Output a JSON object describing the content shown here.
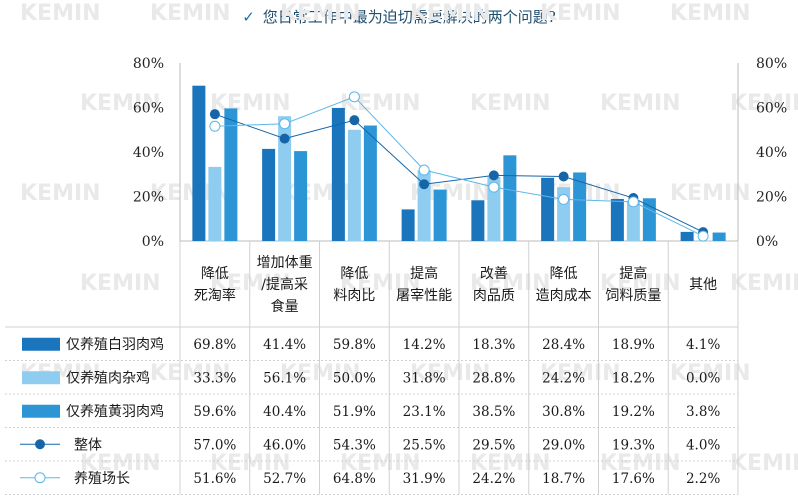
{
  "title": "您日常工作中最为迫切需要解决的两个问题?",
  "title_icon": "check-icon",
  "watermark": "KEMIN",
  "chart_data": {
    "type": "bar",
    "title": "您日常工作中最为迫切需要解决的两个问题?",
    "categories": [
      [
        "降低",
        "死淘率"
      ],
      [
        "增加体重",
        "/提高采",
        "食量"
      ],
      [
        "降低",
        "料肉比"
      ],
      [
        "提高",
        "屠宰性能"
      ],
      [
        "改善",
        "肉品质"
      ],
      [
        "降低",
        "造肉成本"
      ],
      [
        "提高",
        "饲料质量"
      ],
      [
        "其他"
      ]
    ],
    "ylim": [
      0,
      80
    ],
    "yticks": [
      "0%",
      "20%",
      "40%",
      "60%",
      "80%"
    ],
    "ytick_values": [
      0,
      20,
      40,
      60,
      80
    ],
    "series": [
      {
        "name": "仅养殖白羽肉鸡",
        "kind": "bar",
        "color": "#1a75bc",
        "values": [
          69.8,
          41.4,
          59.8,
          14.2,
          18.3,
          28.4,
          18.9,
          4.1
        ],
        "labels": [
          "69.8%",
          "41.4%",
          "59.8%",
          "14.2%",
          "18.3%",
          "28.4%",
          "18.9%",
          "4.1%"
        ]
      },
      {
        "name": "仅养殖肉杂鸡",
        "kind": "bar",
        "color": "#8fcdf0",
        "values": [
          33.3,
          56.1,
          50.0,
          31.8,
          28.8,
          24.2,
          18.2,
          0.0
        ],
        "labels": [
          "33.3%",
          "56.1%",
          "50.0%",
          "31.8%",
          "28.8%",
          "24.2%",
          "18.2%",
          "0.0%"
        ]
      },
      {
        "name": "仅养殖黄羽肉鸡",
        "kind": "bar",
        "color": "#2b95d6",
        "values": [
          59.6,
          40.4,
          51.9,
          23.1,
          38.5,
          30.8,
          19.2,
          3.8
        ],
        "labels": [
          "59.6%",
          "40.4%",
          "51.9%",
          "23.1%",
          "38.5%",
          "30.8%",
          "19.2%",
          "3.8%"
        ]
      },
      {
        "name": "整体",
        "kind": "line-dot",
        "color": "#1665a8",
        "values": [
          57.0,
          46.0,
          54.3,
          25.5,
          29.5,
          29.0,
          19.3,
          4.0
        ],
        "labels": [
          "57.0%",
          "46.0%",
          "54.3%",
          "25.5%",
          "29.5%",
          "29.0%",
          "19.3%",
          "4.0%"
        ]
      },
      {
        "name": "养殖场长",
        "kind": "line-circle",
        "color": "#5cb8e8",
        "values": [
          51.6,
          52.7,
          64.8,
          31.9,
          24.2,
          18.7,
          17.6,
          2.2
        ],
        "labels": [
          "51.6%",
          "52.7%",
          "64.8%",
          "31.9%",
          "24.2%",
          "18.7%",
          "17.6%",
          "2.2%"
        ]
      }
    ]
  }
}
